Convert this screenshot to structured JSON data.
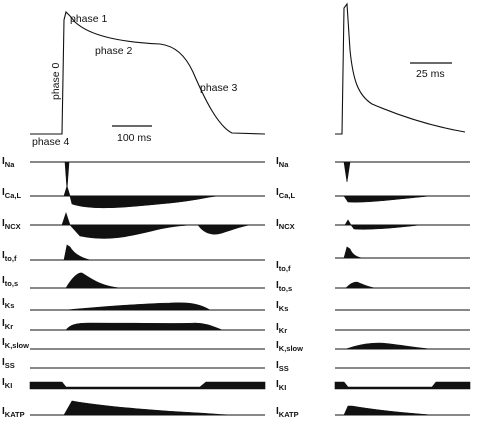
{
  "phase_labels": {
    "phase1": "phase 1",
    "phase2": "phase 2",
    "phase3": "phase 3",
    "phase0": "phase 0",
    "phase4": "phase 4"
  },
  "scale_bars": {
    "left": "100 ms",
    "right": "25 ms"
  },
  "currents": [
    {
      "id": "na",
      "main": "I",
      "sub": "Na"
    },
    {
      "id": "cal",
      "main": "I",
      "sub": "Ca,L"
    },
    {
      "id": "ncx",
      "main": "I",
      "sub": "NCX"
    },
    {
      "id": "tof",
      "main": "I",
      "sub": "to,f"
    },
    {
      "id": "tos",
      "main": "I",
      "sub": "to,s"
    },
    {
      "id": "ks",
      "main": "I",
      "sub": "Ks"
    },
    {
      "id": "kr",
      "main": "I",
      "sub": "Kr"
    },
    {
      "id": "kslow",
      "main": "I",
      "sub": "K,slow"
    },
    {
      "id": "ss",
      "main": "I",
      "sub": "SS"
    },
    {
      "id": "k1",
      "main": "I",
      "sub": "KI"
    },
    {
      "id": "katp",
      "main": "I",
      "sub": "KATP"
    }
  ]
}
